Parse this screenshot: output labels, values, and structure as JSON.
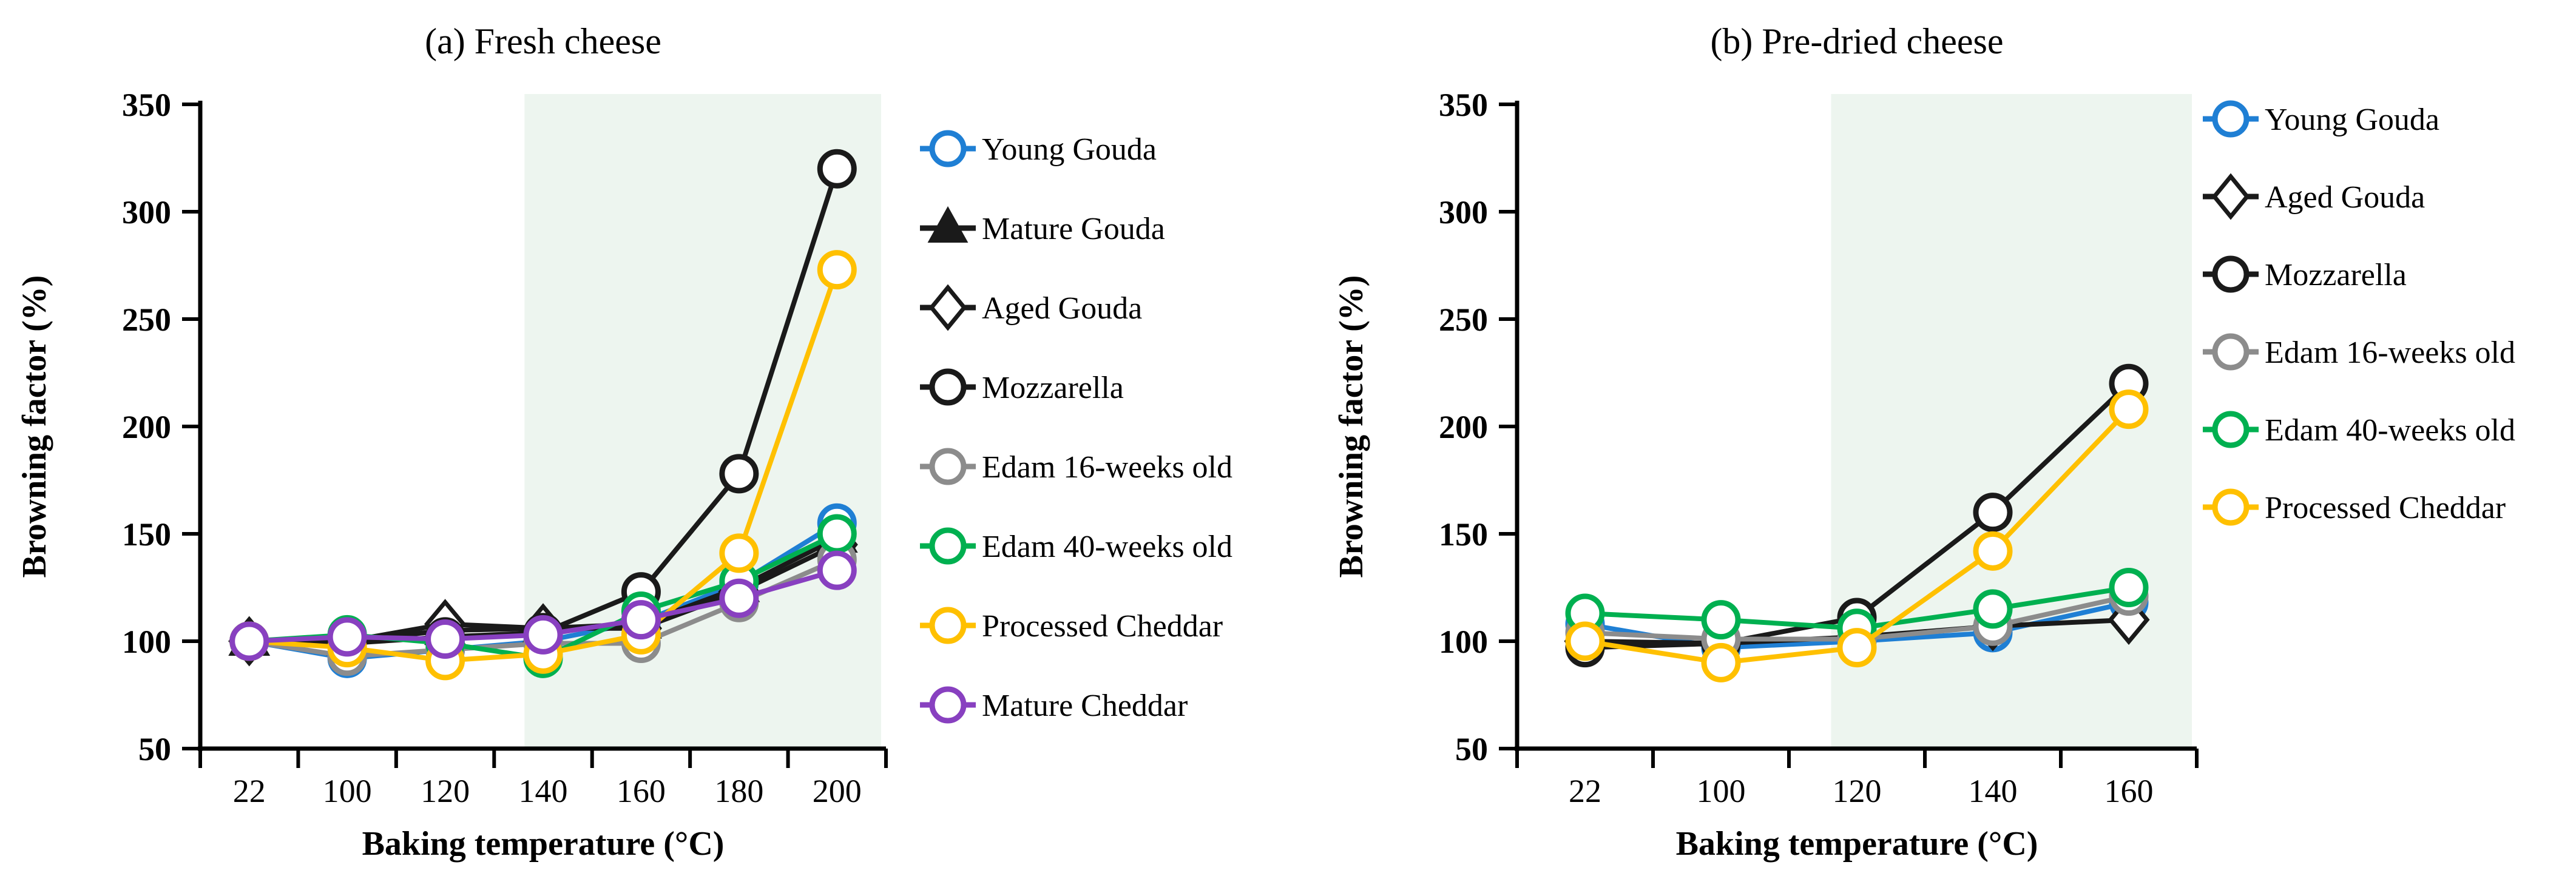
{
  "chart_data": [
    {
      "type": "line",
      "key": "a",
      "title": "(a) Fresh cheese",
      "xlabel": "Baking temperature (°C)",
      "ylabel": "Browning factor (%)",
      "categories": [
        "22",
        "100",
        "120",
        "140",
        "160",
        "180",
        "200"
      ],
      "yticks": [
        350,
        300,
        250,
        200,
        150,
        100,
        50
      ],
      "ylim": [
        50,
        350
      ],
      "grid": "off",
      "legend_position": "right",
      "shaded_region": {
        "from_category": "140",
        "to": "end",
        "color": "#EDF5EF"
      },
      "series": [
        {
          "name": "Young Gouda",
          "color": "#1F7FD4",
          "marker": "circle",
          "values": [
            100,
            92,
            96,
            100,
            109,
            127,
            155
          ]
        },
        {
          "name": "Mature Gouda",
          "color": "#1A1A1A",
          "marker": "triangle-filled",
          "values": [
            100,
            100,
            105,
            106,
            108,
            125,
            148
          ]
        },
        {
          "name": "Aged Gouda",
          "color": "#1A1A1A",
          "marker": "diamond",
          "values": [
            100,
            100,
            108,
            106,
            106,
            123,
            145
          ]
        },
        {
          "name": "Mozzarella",
          "color": "#1A1A1A",
          "marker": "circle",
          "values": [
            100,
            99,
            102,
            104,
            123,
            178,
            320
          ]
        },
        {
          "name": "Edam 16-weeks old",
          "color": "#8C8C8C",
          "marker": "circle",
          "values": [
            100,
            93,
            96,
            99,
            99,
            118,
            138
          ]
        },
        {
          "name": "Edam 40-weeks old",
          "color": "#00B050",
          "marker": "circle",
          "values": [
            100,
            103,
            99,
            92,
            114,
            128,
            150
          ]
        },
        {
          "name": "Processed Cheddar",
          "color": "#FFC000",
          "marker": "circle",
          "values": [
            100,
            97,
            91,
            94,
            103,
            141,
            273
          ]
        },
        {
          "name": "Mature Cheddar",
          "color": "#8840C0",
          "marker": "circle",
          "values": [
            100,
            102,
            101,
            103,
            110,
            120,
            133
          ]
        }
      ]
    },
    {
      "type": "line",
      "key": "b",
      "title": "(b) Pre-dried cheese",
      "xlabel": "Baking temperature (°C)",
      "ylabel": "Browning factor (%)",
      "categories": [
        "22",
        "100",
        "120",
        "140",
        "160"
      ],
      "yticks": [
        350,
        300,
        250,
        200,
        150,
        100,
        50
      ],
      "ylim": [
        50,
        350
      ],
      "grid": "off",
      "legend_position": "right",
      "shaded_region": {
        "from_category": "120",
        "to": "end",
        "color": "#EDF5EF"
      },
      "series": [
        {
          "name": "Young Gouda",
          "color": "#1F7FD4",
          "marker": "circle",
          "values": [
            108,
            97,
            100,
            104,
            118
          ]
        },
        {
          "name": "Aged Gouda",
          "color": "#1A1A1A",
          "marker": "diamond",
          "values": [
            100,
            99,
            102,
            107,
            110
          ]
        },
        {
          "name": "Mozzarella",
          "color": "#1A1A1A",
          "marker": "circle",
          "values": [
            97,
            99,
            111,
            160,
            220
          ]
        },
        {
          "name": "Edam 16-weeks old",
          "color": "#8C8C8C",
          "marker": "circle",
          "values": [
            104,
            101,
            101,
            107,
            121
          ]
        },
        {
          "name": "Edam 40-weeks old",
          "color": "#00B050",
          "marker": "circle",
          "values": [
            113,
            110,
            106,
            115,
            125
          ]
        },
        {
          "name": "Processed Cheddar",
          "color": "#FFC000",
          "marker": "circle",
          "values": [
            100,
            90,
            97,
            142,
            208
          ]
        }
      ]
    }
  ]
}
